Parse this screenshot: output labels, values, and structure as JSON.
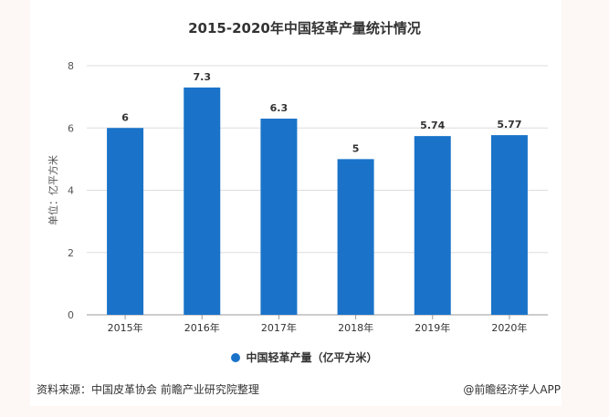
{
  "chart_data": {
    "type": "bar",
    "title": "2015-2020年中国轻革产量统计情况",
    "categories": [
      "2015年",
      "2016年",
      "2017年",
      "2018年",
      "2019年",
      "2020年"
    ],
    "series": [
      {
        "name": "中国轻革产量（亿平方米）",
        "values": [
          6,
          7.3,
          6.3,
          5,
          5.74,
          5.77
        ],
        "labels": [
          "6",
          "7.3",
          "6.3",
          "5",
          "5.74",
          "5.77"
        ]
      }
    ],
    "ylabel": "单位：亿平方米",
    "ylim": [
      0,
      8
    ],
    "yticks": [
      "0",
      "2",
      "4",
      "6",
      "8"
    ],
    "grid": true,
    "legend": "bottom",
    "color": "#1a73c9"
  },
  "footer": {
    "source": "资料来源：中国皮革协会 前瞻产业研究院整理",
    "credit": "@前瞻经济学人APP"
  }
}
